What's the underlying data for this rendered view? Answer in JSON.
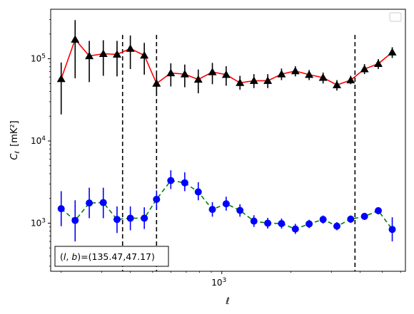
{
  "chart_data": {
    "type": "scatter",
    "xlabel": "ℓ",
    "ylabel_main": "C",
    "ylabel_sub": "ℓ",
    "ylabel_unit": "[mK²]",
    "xscale": "log",
    "yscale": "log",
    "xlim": [
      180,
      6300
    ],
    "ylim": [
      260,
      400000
    ],
    "x_ticks": [
      {
        "value": 1000,
        "base": "10",
        "exp": "3"
      }
    ],
    "y_ticks": [
      {
        "value": 1000,
        "base": "10",
        "exp": "3"
      },
      {
        "value": 10000,
        "base": "10",
        "exp": "4"
      },
      {
        "value": 100000,
        "base": "10",
        "exp": "5"
      }
    ],
    "grid": false,
    "legend": "top-right (empty)",
    "annotation": "(l, b)=(135.47,47.17)",
    "vlines": [
      370,
      520,
      3800
    ],
    "series": [
      {
        "line_color": "#ff0000",
        "line_style": "solid",
        "marker": "triangle",
        "marker_color": "#000000",
        "errbar_color": "#000000",
        "x": [
          200,
          230,
          265,
          305,
          350,
          400,
          460,
          520,
          600,
          690,
          790,
          910,
          1045,
          1200,
          1380,
          1585,
          1820,
          2090,
          2400,
          2760,
          3170,
          3640,
          4180,
          4800,
          5520
        ],
        "y": [
          57000,
          172000,
          108000,
          115000,
          113000,
          133000,
          110000,
          50000,
          67000,
          65000,
          56000,
          69000,
          64000,
          51000,
          54000,
          54000,
          65000,
          71000,
          64000,
          59000,
          48000,
          55000,
          75000,
          87000,
          120000
        ],
        "y_lo": [
          21000,
          58000,
          52000,
          62000,
          61000,
          75000,
          64000,
          36000,
          46000,
          45000,
          38000,
          49000,
          47000,
          42000,
          44000,
          44000,
          55000,
          61000,
          55000,
          50000,
          41000,
          49000,
          65000,
          75000,
          102000
        ],
        "y_hi": [
          90000,
          295000,
          165000,
          168000,
          165000,
          192000,
          156000,
          65000,
          88000,
          85000,
          74000,
          89000,
          81000,
          62000,
          65000,
          65000,
          76000,
          81000,
          73000,
          68000,
          55000,
          62000,
          86000,
          99000,
          138000
        ]
      },
      {
        "line_color": "#008000",
        "line_style": "dashed",
        "marker": "circle",
        "marker_color": "#0000ff",
        "errbar_color": "#0000ff",
        "x": [
          200,
          230,
          265,
          305,
          350,
          400,
          460,
          520,
          600,
          690,
          790,
          910,
          1045,
          1200,
          1380,
          1585,
          1820,
          2090,
          2400,
          2760,
          3170,
          3640,
          4180,
          4800,
          5520
        ],
        "y": [
          1500,
          1080,
          1760,
          1780,
          1110,
          1150,
          1150,
          1950,
          3300,
          3100,
          2400,
          1470,
          1720,
          1430,
          1060,
          1000,
          990,
          850,
          980,
          1110,
          920,
          1120,
          1210,
          1420,
          840
        ],
        "y_lo": [
          920,
          600,
          1150,
          1150,
          760,
          820,
          850,
          1500,
          2600,
          2450,
          1900,
          1200,
          1420,
          1200,
          900,
          860,
          860,
          740,
          870,
          990,
          820,
          1010,
          1100,
          1280,
          600
        ],
        "y_hi": [
          2450,
          1900,
          2700,
          2700,
          1600,
          1600,
          1560,
          2500,
          4400,
          4150,
          3150,
          1800,
          2100,
          1700,
          1250,
          1160,
          1140,
          980,
          1100,
          1240,
          1030,
          1240,
          1330,
          1560,
          1180
        ]
      }
    ]
  }
}
